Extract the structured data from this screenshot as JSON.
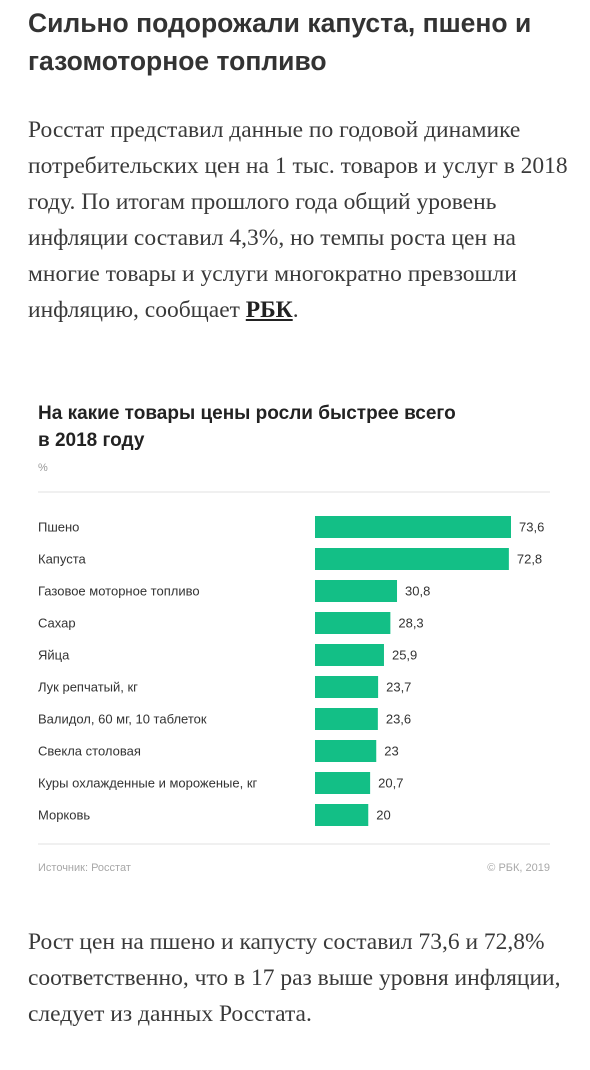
{
  "article": {
    "headline": "Сильно подорожали капуста, пшено и газомоторное топливо",
    "paragraph1_text": "Росстат представил данные по годовой динамике потребительских цен на 1 тыс. товаров и услуг в 2018 году. По итогам прошлого года общий уровень инфляции составил 4,3%, но темпы роста цен на многие товары и услуги многократно превзошли инфляцию, сообщает ",
    "paragraph1_link": "РБК",
    "paragraph1_end": ".",
    "paragraph2_text": "Рост цен на пшено и капусту составил 73,6 и 72,8% соответственно, что в 17 раз выше уровня инфляции, следует из данных Росстата."
  },
  "chart_data": {
    "type": "bar",
    "orientation": "horizontal",
    "title_line1": "На какие товары цены росли быстрее всего",
    "title_line2": "в 2018 году",
    "unit": "%",
    "categories": [
      "Пшено",
      "Капуста",
      "Газовое моторное топливо",
      "Сахар",
      "Яйца",
      "Лук репчатый, кг",
      "Валидол, 60 мг, 10 таблеток",
      "Свекла столовая",
      "Куры охлажденные и мороженые, кг",
      "Морковь"
    ],
    "values": [
      73.6,
      72.8,
      30.8,
      28.3,
      25.9,
      23.7,
      23.6,
      23,
      20.7,
      20
    ],
    "value_labels": [
      "73,6",
      "72,8",
      "30,8",
      "28,3",
      "25,9",
      "23,7",
      "23,6",
      "23",
      "20,7",
      "20"
    ],
    "bar_color": "#13bf86",
    "source": "Источник: Росстат",
    "copyright": "© РБК, 2019",
    "grid": false,
    "legend": "none"
  }
}
